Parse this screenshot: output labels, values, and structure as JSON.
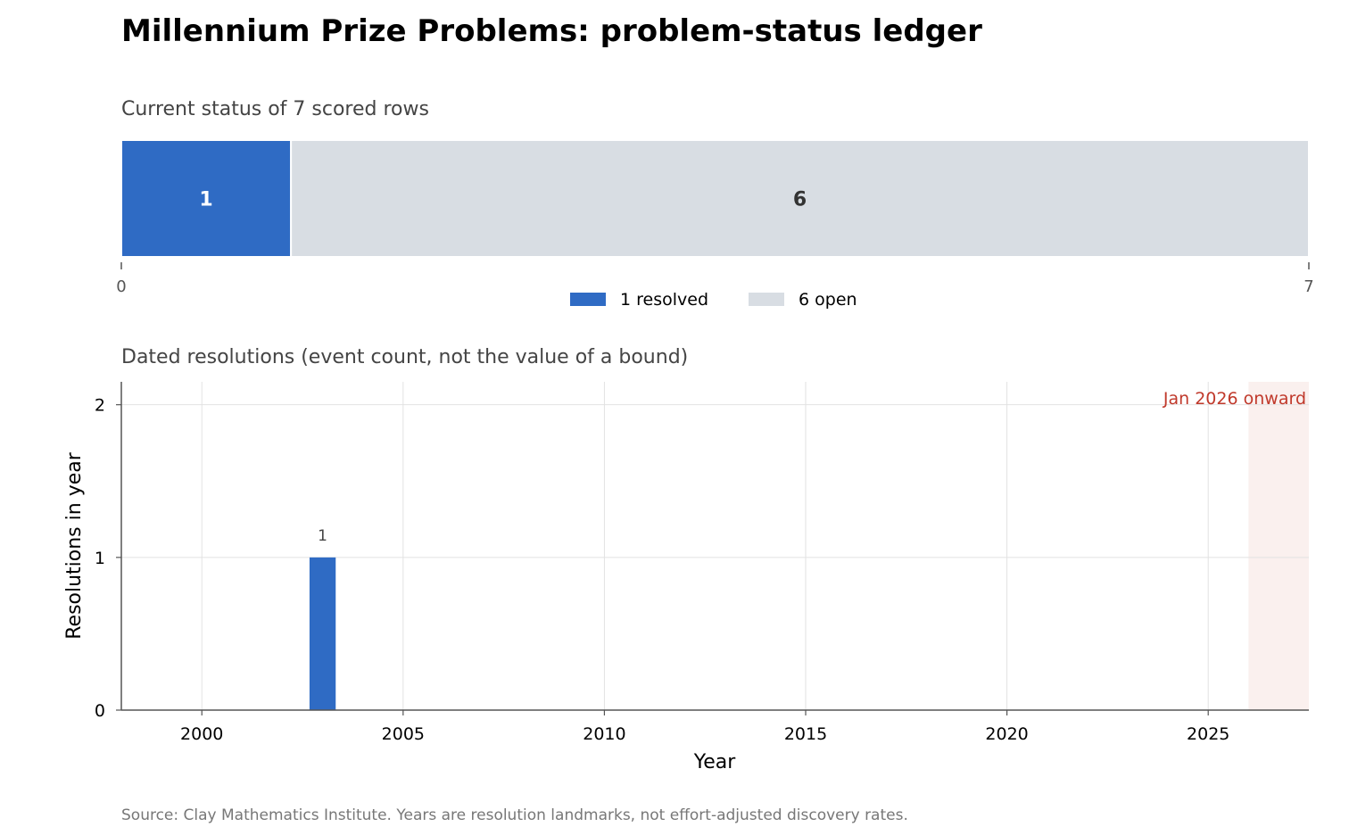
{
  "title": "Millennium Prize Problems: problem-status ledger",
  "source": "Source: Clay Mathematics Institute. Years are resolution landmarks, not effort-adjusted discovery rates.",
  "chart_data": [
    {
      "type": "bar",
      "orientation": "horizontal-stacked",
      "subtitle": "Current status of 7 scored rows",
      "segments": [
        {
          "name": "resolved",
          "value": 1,
          "color": "#2f6bc4",
          "text_color": "#ffffff"
        },
        {
          "name": "open",
          "value": 6,
          "color": "#d8dde3",
          "text_color": "#333333"
        }
      ],
      "total": 7,
      "xlim": [
        0,
        7
      ],
      "ticks": [
        "0",
        "7"
      ],
      "legend": [
        "1 resolved",
        "6 open"
      ],
      "legend_placement": "bottom-center"
    },
    {
      "type": "bar",
      "subtitle": "Dated resolutions (event count, not the value of a bound)",
      "xlabel": "Year",
      "ylabel": "Resolutions in year",
      "x": [
        2003
      ],
      "values": [
        1
      ],
      "value_labels": [
        "1"
      ],
      "color": "#2f6bc4",
      "xlim": [
        1998,
        2027.5
      ],
      "ylim": [
        0,
        2.15
      ],
      "xticks": [
        2000,
        2005,
        2010,
        2015,
        2020,
        2025
      ],
      "yticks": [
        0,
        1,
        2
      ],
      "grid": true,
      "shaded_region": {
        "from": 2026,
        "to": 2027.5,
        "label": "Jan 2026 onward",
        "color": "#faf0ee",
        "label_color": "#c0392b"
      }
    }
  ]
}
